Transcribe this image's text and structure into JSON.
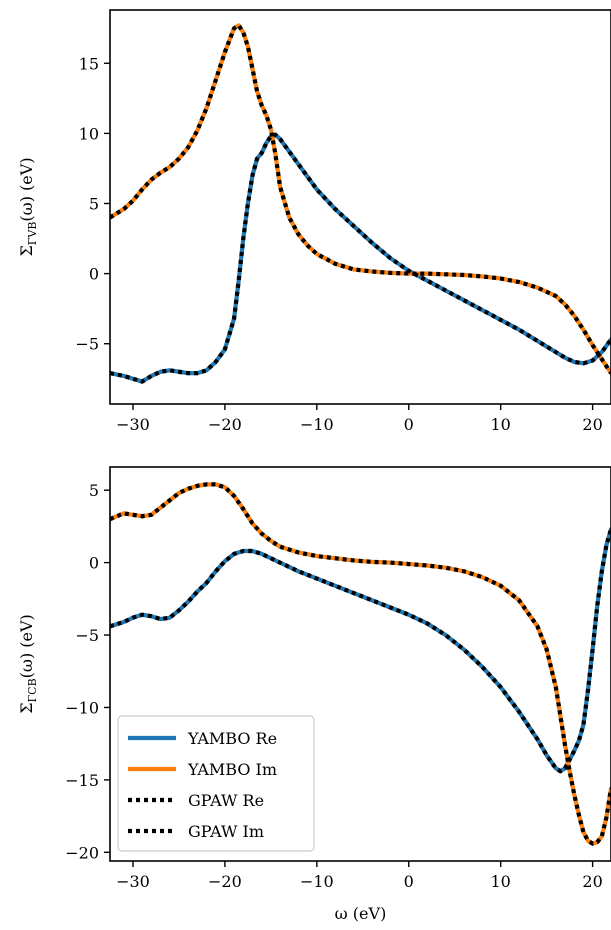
{
  "chart_data": [
    {
      "type": "line",
      "xlabel": "",
      "ylabel": "Σ_{ΓVB}(ω) (eV)",
      "ylabel_parts": {
        "main": "Σ",
        "sub": "ΓVB",
        "rest": "(ω) (eV)"
      },
      "xlim": [
        -32.5,
        22
      ],
      "ylim": [
        -9.3,
        18.8
      ],
      "xticks": [
        -30,
        -20,
        -10,
        0,
        10,
        20
      ],
      "xtick_labels": [
        "−30",
        "−20",
        "−10",
        "0",
        "10",
        "20"
      ],
      "yticks": [
        -5,
        0,
        5,
        10,
        15
      ],
      "ytick_labels": [
        "−5",
        "0",
        "5",
        "10",
        "15"
      ],
      "grid": false,
      "series": [
        {
          "name": "YAMBO Re",
          "color": "#1f77b4",
          "style": "solid",
          "x": [
            -32.5,
            -31,
            -30,
            -29,
            -28,
            -27,
            -26,
            -25,
            -24,
            -23,
            -22,
            -21,
            -20,
            -19,
            -18.5,
            -18,
            -17.5,
            -17,
            -16.5,
            -16,
            -15.5,
            -15,
            -14.5,
            -14,
            -13,
            -12,
            -11,
            -10,
            -8,
            -6,
            -4,
            -2,
            0,
            2,
            4,
            6,
            8,
            10,
            12,
            14,
            16,
            17,
            18,
            19,
            20,
            21,
            22
          ],
          "y": [
            -7.1,
            -7.3,
            -7.5,
            -7.7,
            -7.3,
            -7.0,
            -6.9,
            -7.0,
            -7.1,
            -7.1,
            -6.9,
            -6.3,
            -5.4,
            -3.2,
            -0.5,
            2.5,
            5.0,
            7.0,
            8.2,
            8.6,
            9.3,
            9.8,
            9.9,
            9.6,
            8.7,
            7.8,
            6.9,
            6.0,
            4.6,
            3.4,
            2.2,
            1.1,
            0.2,
            -0.5,
            -1.2,
            -1.9,
            -2.6,
            -3.3,
            -4.0,
            -4.8,
            -5.6,
            -6.0,
            -6.3,
            -6.4,
            -6.2,
            -5.6,
            -4.7
          ]
        },
        {
          "name": "YAMBO Im",
          "color": "#ff7f0e",
          "style": "solid",
          "x": [
            -32.5,
            -31,
            -30,
            -29,
            -28,
            -27,
            -26,
            -25,
            -24,
            -23,
            -22,
            -21,
            -20,
            -19,
            -18.5,
            -18,
            -17.5,
            -17,
            -16.5,
            -16,
            -15.5,
            -15,
            -14.5,
            -14,
            -13,
            -12,
            -11,
            -10,
            -8,
            -6,
            -4,
            -2,
            0,
            2,
            4,
            6,
            8,
            10,
            12,
            14,
            16,
            17,
            18,
            19,
            20,
            21,
            22
          ],
          "y": [
            4.0,
            4.6,
            5.2,
            6.0,
            6.7,
            7.2,
            7.6,
            8.2,
            9.0,
            10.2,
            11.8,
            13.8,
            15.8,
            17.5,
            17.7,
            17.2,
            16.2,
            14.6,
            13.0,
            12.0,
            11.3,
            10.3,
            8.5,
            6.2,
            4.0,
            2.8,
            2.0,
            1.4,
            0.7,
            0.3,
            0.15,
            0.05,
            0.0,
            0.0,
            -0.05,
            -0.1,
            -0.2,
            -0.35,
            -0.6,
            -1.0,
            -1.6,
            -2.2,
            -3.0,
            -4.0,
            -5.1,
            -6.1,
            -7.1
          ]
        },
        {
          "name": "GPAW Re",
          "color": "#000000",
          "style": "dotted",
          "x": [
            -32.5,
            -31,
            -30,
            -29,
            -28,
            -27,
            -26,
            -25,
            -24,
            -23,
            -22,
            -21,
            -20,
            -19,
            -18.5,
            -18,
            -17.5,
            -17,
            -16.5,
            -16,
            -15.5,
            -15,
            -14.5,
            -14,
            -13,
            -12,
            -11,
            -10,
            -8,
            -6,
            -4,
            -2,
            0,
            2,
            4,
            6,
            8,
            10,
            12,
            14,
            16,
            17,
            18,
            19,
            20,
            21,
            22
          ],
          "y": [
            -7.1,
            -7.3,
            -7.5,
            -7.7,
            -7.3,
            -7.0,
            -6.9,
            -7.0,
            -7.1,
            -7.1,
            -6.9,
            -6.3,
            -5.4,
            -3.2,
            -0.5,
            2.5,
            5.0,
            7.0,
            8.2,
            8.6,
            9.3,
            9.8,
            9.9,
            9.6,
            8.7,
            7.8,
            6.9,
            6.0,
            4.6,
            3.4,
            2.2,
            1.1,
            0.2,
            -0.5,
            -1.2,
            -1.9,
            -2.6,
            -3.3,
            -4.0,
            -4.8,
            -5.6,
            -6.0,
            -6.3,
            -6.4,
            -6.2,
            -5.6,
            -4.7
          ]
        },
        {
          "name": "GPAW Im",
          "color": "#000000",
          "style": "dotted",
          "x": [
            -32.5,
            -31,
            -30,
            -29,
            -28,
            -27,
            -26,
            -25,
            -24,
            -23,
            -22,
            -21,
            -20,
            -19,
            -18.5,
            -18,
            -17.5,
            -17,
            -16.5,
            -16,
            -15.5,
            -15,
            -14.5,
            -14,
            -13,
            -12,
            -11,
            -10,
            -8,
            -6,
            -4,
            -2,
            0,
            2,
            4,
            6,
            8,
            10,
            12,
            14,
            16,
            17,
            18,
            19,
            20,
            21,
            22
          ],
          "y": [
            4.0,
            4.6,
            5.2,
            6.0,
            6.7,
            7.2,
            7.6,
            8.2,
            9.0,
            10.2,
            11.8,
            13.8,
            15.8,
            17.5,
            17.7,
            17.2,
            16.2,
            14.6,
            13.0,
            12.0,
            11.3,
            10.3,
            8.5,
            6.2,
            4.0,
            2.8,
            2.0,
            1.4,
            0.7,
            0.3,
            0.15,
            0.05,
            0.0,
            0.0,
            -0.05,
            -0.1,
            -0.2,
            -0.35,
            -0.6,
            -1.0,
            -1.6,
            -2.2,
            -3.0,
            -4.0,
            -5.1,
            -6.1,
            -7.1
          ]
        }
      ]
    },
    {
      "type": "line",
      "xlabel": "ω (eV)",
      "ylabel": "Σ_{ΓCB}(ω) (eV)",
      "ylabel_parts": {
        "main": "Σ",
        "sub": "ΓCB",
        "rest": "(ω) (eV)"
      },
      "xlim": [
        -32.5,
        22
      ],
      "ylim": [
        -20.6,
        6.6
      ],
      "xticks": [
        -30,
        -20,
        -10,
        0,
        10,
        20
      ],
      "xtick_labels": [
        "−30",
        "−20",
        "−10",
        "0",
        "10",
        "20"
      ],
      "yticks": [
        -20,
        -15,
        -10,
        -5,
        0,
        5
      ],
      "ytick_labels": [
        "−20",
        "−15",
        "−10",
        "−5",
        "0",
        "5"
      ],
      "grid": false,
      "legend": "lower-left",
      "series": [
        {
          "name": "YAMBO Re",
          "color": "#1f77b4",
          "style": "solid",
          "x": [
            -32.5,
            -31,
            -30,
            -29,
            -28,
            -27,
            -26,
            -25,
            -24,
            -23,
            -22,
            -21,
            -20,
            -19,
            -18,
            -17,
            -16,
            -15,
            -14,
            -12,
            -10,
            -8,
            -6,
            -4,
            -2,
            0,
            2,
            4,
            6,
            8,
            10,
            12,
            14,
            15,
            16,
            16.5,
            17,
            17.5,
            18,
            18.5,
            19,
            19.5,
            20,
            20.5,
            21,
            21.5,
            22
          ],
          "y": [
            -4.4,
            -4.1,
            -3.8,
            -3.6,
            -3.7,
            -3.9,
            -3.8,
            -3.3,
            -2.7,
            -2.0,
            -1.4,
            -0.6,
            0.1,
            0.6,
            0.8,
            0.8,
            0.6,
            0.3,
            0.0,
            -0.6,
            -1.1,
            -1.6,
            -2.1,
            -2.6,
            -3.1,
            -3.6,
            -4.2,
            -5.0,
            -6.0,
            -7.2,
            -8.6,
            -10.3,
            -12.2,
            -13.3,
            -14.2,
            -14.4,
            -14.2,
            -13.6,
            -13.0,
            -12.3,
            -11.2,
            -8.8,
            -6.0,
            -3.0,
            -0.6,
            1.2,
            2.3
          ]
        },
        {
          "name": "YAMBO Im",
          "color": "#ff7f0e",
          "style": "solid",
          "x": [
            -32.5,
            -31,
            -30,
            -29,
            -28,
            -27,
            -26,
            -25,
            -24,
            -23,
            -22,
            -21,
            -20,
            -19,
            -18,
            -17,
            -16,
            -15,
            -14,
            -12,
            -10,
            -8,
            -6,
            -4,
            -2,
            0,
            2,
            4,
            6,
            8,
            10,
            12,
            14,
            15,
            16,
            16.5,
            17,
            17.5,
            18,
            18.5,
            19,
            19.5,
            20,
            20.5,
            21,
            21.5,
            22
          ],
          "y": [
            3.0,
            3.4,
            3.3,
            3.2,
            3.3,
            3.8,
            4.3,
            4.8,
            5.1,
            5.3,
            5.4,
            5.4,
            5.2,
            4.6,
            3.7,
            2.7,
            2.0,
            1.5,
            1.1,
            0.7,
            0.45,
            0.3,
            0.15,
            0.05,
            0.0,
            -0.1,
            -0.2,
            -0.35,
            -0.6,
            -1.0,
            -1.6,
            -2.6,
            -4.4,
            -6.0,
            -8.6,
            -10.6,
            -12.6,
            -14.4,
            -16.0,
            -17.4,
            -18.6,
            -19.2,
            -19.4,
            -19.3,
            -18.9,
            -17.6,
            -15.6
          ]
        },
        {
          "name": "GPAW Re",
          "color": "#000000",
          "style": "dotted",
          "x": [
            -32.5,
            -31,
            -30,
            -29,
            -28,
            -27,
            -26,
            -25,
            -24,
            -23,
            -22,
            -21,
            -20,
            -19,
            -18,
            -17,
            -16,
            -15,
            -14,
            -12,
            -10,
            -8,
            -6,
            -4,
            -2,
            0,
            2,
            4,
            6,
            8,
            10,
            12,
            14,
            15,
            16,
            16.5,
            17,
            17.5,
            18,
            18.5,
            19,
            19.5,
            20,
            20.5,
            21,
            21.5,
            22
          ],
          "y": [
            -4.4,
            -4.1,
            -3.8,
            -3.6,
            -3.7,
            -3.9,
            -3.8,
            -3.3,
            -2.7,
            -2.0,
            -1.4,
            -0.6,
            0.1,
            0.6,
            0.8,
            0.8,
            0.6,
            0.3,
            0.0,
            -0.6,
            -1.1,
            -1.6,
            -2.1,
            -2.6,
            -3.1,
            -3.6,
            -4.2,
            -5.0,
            -6.0,
            -7.2,
            -8.6,
            -10.3,
            -12.2,
            -13.3,
            -14.2,
            -14.4,
            -14.2,
            -13.6,
            -13.0,
            -12.3,
            -11.2,
            -8.8,
            -6.0,
            -3.0,
            -0.6,
            1.2,
            2.3
          ]
        },
        {
          "name": "GPAW Im",
          "color": "#000000",
          "style": "dotted",
          "x": [
            -32.5,
            -31,
            -30,
            -29,
            -28,
            -27,
            -26,
            -25,
            -24,
            -23,
            -22,
            -21,
            -20,
            -19,
            -18,
            -17,
            -16,
            -15,
            -14,
            -12,
            -10,
            -8,
            -6,
            -4,
            -2,
            0,
            2,
            4,
            6,
            8,
            10,
            12,
            14,
            15,
            16,
            16.5,
            17,
            17.5,
            18,
            18.5,
            19,
            19.5,
            20,
            20.5,
            21,
            21.5,
            22
          ],
          "y": [
            3.0,
            3.4,
            3.3,
            3.2,
            3.3,
            3.8,
            4.3,
            4.8,
            5.1,
            5.3,
            5.4,
            5.4,
            5.2,
            4.6,
            3.7,
            2.7,
            2.0,
            1.5,
            1.1,
            0.7,
            0.45,
            0.3,
            0.15,
            0.05,
            0.0,
            -0.1,
            -0.2,
            -0.35,
            -0.6,
            -1.0,
            -1.6,
            -2.6,
            -4.4,
            -6.0,
            -8.6,
            -10.6,
            -12.6,
            -14.4,
            -16.0,
            -17.4,
            -18.6,
            -19.2,
            -19.4,
            -19.3,
            -18.9,
            -17.6,
            -15.6
          ]
        }
      ]
    }
  ]
}
